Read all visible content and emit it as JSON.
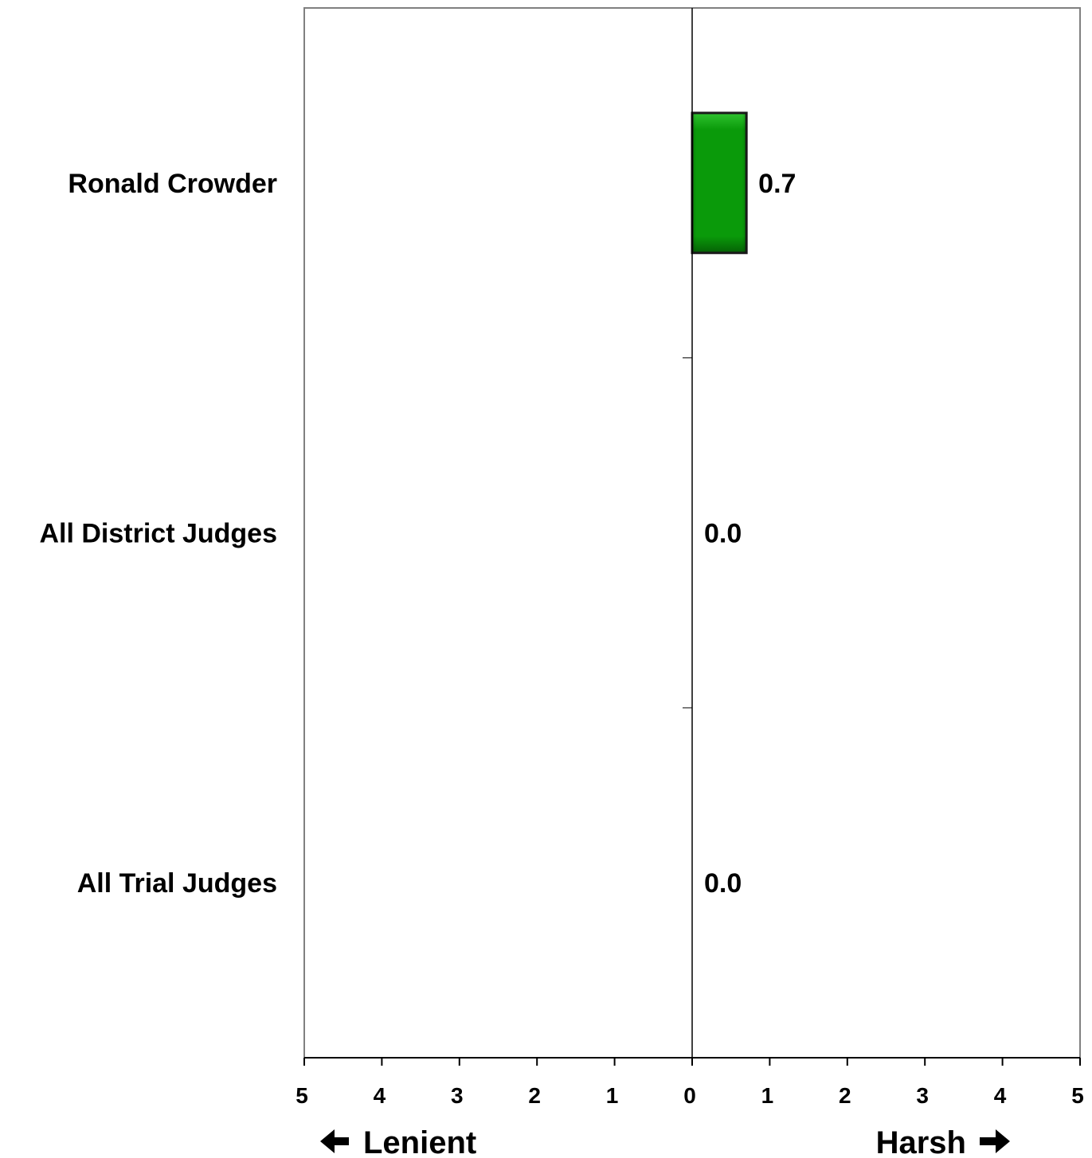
{
  "chart_data": {
    "type": "bar",
    "orientation": "horizontal",
    "categories": [
      "Ronald Crowder",
      "All District Judges",
      "All Trial Judges"
    ],
    "values": [
      0.7,
      0.0,
      0.0
    ],
    "data_labels": [
      "0.7",
      "0.0",
      "0.0"
    ],
    "xlim": [
      -5,
      5
    ],
    "x_ticks": [
      -5,
      -4,
      -3,
      -2,
      -1,
      0,
      1,
      2,
      3,
      4,
      5
    ],
    "x_tick_labels": [
      "5",
      "4",
      "3",
      "2",
      "1",
      "0",
      "1",
      "2",
      "3",
      "4",
      "5"
    ],
    "direction_labels": {
      "left": "Lenient",
      "right": "Harsh"
    },
    "bar_color": "#0a9a0a",
    "grid": false,
    "legend": "none"
  }
}
